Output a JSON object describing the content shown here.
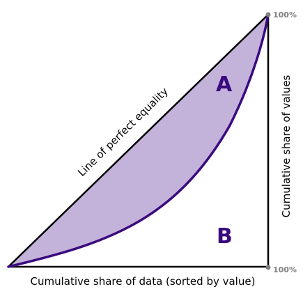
{
  "diagram": {
    "diagonal_label": "Line of perfect equality",
    "x_axis_label": "Cumulative share of data (sorted by value)",
    "y_axis_label": "Cumulative share of values",
    "top_right_label": "100%",
    "bottom_right_label": "100%",
    "region_a_label": "A",
    "region_b_label": "B"
  },
  "colors": {
    "curve": "#3b0a7e",
    "fill": "#c3b3db",
    "region_label": "#3b0a7e",
    "frame": "#000000",
    "endpoint_dot": "#808080"
  }
}
